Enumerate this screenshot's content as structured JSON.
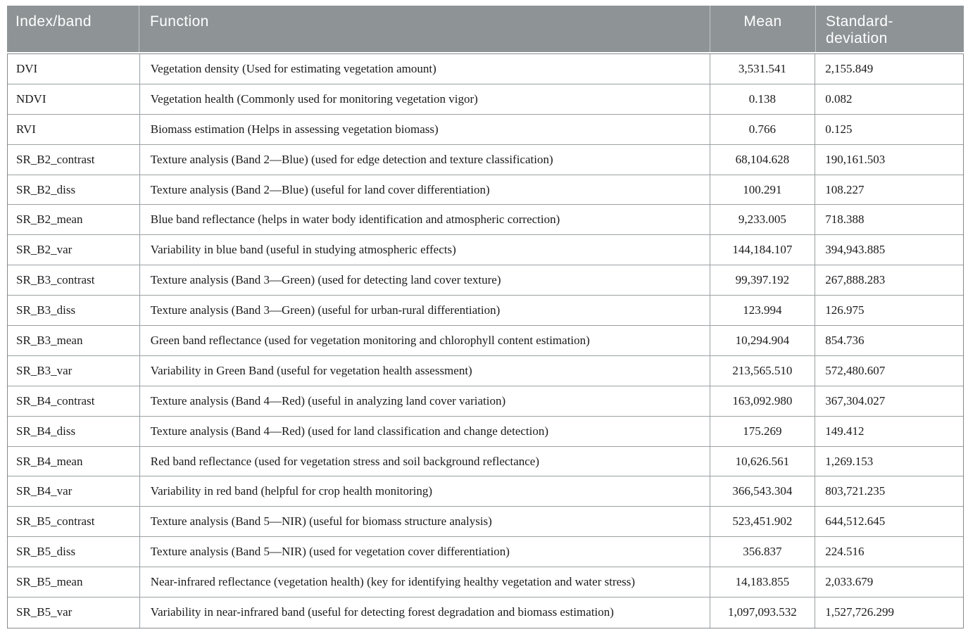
{
  "table": {
    "columns": [
      {
        "label": "Index/band"
      },
      {
        "label": "Function"
      },
      {
        "label": "Mean"
      },
      {
        "label": "Standard-deviation"
      }
    ],
    "rows": [
      {
        "index_band": "DVI",
        "function": "Vegetation density (Used for estimating vegetation amount)",
        "mean": "3,531.541",
        "std_dev": "2,155.849"
      },
      {
        "index_band": "NDVI",
        "function": "Vegetation health (Commonly used for monitoring vegetation vigor)",
        "mean": "0.138",
        "std_dev": "0.082"
      },
      {
        "index_band": "RVI",
        "function": "Biomass estimation (Helps in assessing vegetation biomass)",
        "mean": "0.766",
        "std_dev": "0.125"
      },
      {
        "index_band": "SR_B2_contrast",
        "function": "Texture analysis (Band 2—Blue) (used for edge detection and texture classification)",
        "mean": "68,104.628",
        "std_dev": "190,161.503"
      },
      {
        "index_band": "SR_B2_diss",
        "function": "Texture analysis (Band 2—Blue) (useful for land cover differentiation)",
        "mean": "100.291",
        "std_dev": "108.227"
      },
      {
        "index_band": "SR_B2_mean",
        "function": "Blue band reflectance (helps in water body identification and atmospheric correction)",
        "mean": "9,233.005",
        "std_dev": "718.388"
      },
      {
        "index_band": "SR_B2_var",
        "function": "Variability in blue band (useful in studying atmospheric effects)",
        "mean": "144,184.107",
        "std_dev": "394,943.885"
      },
      {
        "index_band": "SR_B3_contrast",
        "function": "Texture analysis (Band 3—Green) (used for detecting land cover texture)",
        "mean": "99,397.192",
        "std_dev": "267,888.283"
      },
      {
        "index_band": "SR_B3_diss",
        "function": "Texture analysis (Band 3—Green) (useful for urban-rural differentiation)",
        "mean": "123.994",
        "std_dev": "126.975"
      },
      {
        "index_band": "SR_B3_mean",
        "function": "Green band reflectance (used for vegetation monitoring and chlorophyll content estimation)",
        "mean": "10,294.904",
        "std_dev": "854.736"
      },
      {
        "index_band": "SR_B3_var",
        "function": "Variability in Green Band (useful for vegetation health assessment)",
        "mean": "213,565.510",
        "std_dev": "572,480.607"
      },
      {
        "index_band": "SR_B4_contrast",
        "function": "Texture analysis (Band 4—Red) (useful in analyzing land cover variation)",
        "mean": "163,092.980",
        "std_dev": "367,304.027"
      },
      {
        "index_band": "SR_B4_diss",
        "function": "Texture analysis (Band 4—Red) (used for land classification and change detection)",
        "mean": "175.269",
        "std_dev": "149.412"
      },
      {
        "index_band": "SR_B4_mean",
        "function": "Red band reflectance (used for vegetation stress and soil background reflectance)",
        "mean": "10,626.561",
        "std_dev": "1,269.153"
      },
      {
        "index_band": "SR_B4_var",
        "function": "Variability in red band (helpful for crop health monitoring)",
        "mean": "366,543.304",
        "std_dev": "803,721.235"
      },
      {
        "index_band": "SR_B5_contrast",
        "function": "Texture analysis (Band 5—NIR) (useful for biomass structure analysis)",
        "mean": "523,451.902",
        "std_dev": "644,512.645"
      },
      {
        "index_band": "SR_B5_diss",
        "function": "Texture analysis (Band 5—NIR) (used for vegetation cover differentiation)",
        "mean": "356.837",
        "std_dev": "224.516"
      },
      {
        "index_band": "SR_B5_mean",
        "function": "Near-infrared reflectance (vegetation health) (key for identifying healthy vegetation and water stress)",
        "mean": "14,183.855",
        "std_dev": "2,033.679"
      },
      {
        "index_band": "SR_B5_var",
        "function": "Variability in near-infrared band (useful for detecting forest degradation and biomass estimation)",
        "mean": "1,097,093.532",
        "std_dev": "1,527,726.299"
      }
    ]
  },
  "colors": {
    "header_background": "#8e9396",
    "header_text": "#ffffff",
    "body_text": "#1a1a1a",
    "grid_line": "#9aa0a2"
  }
}
